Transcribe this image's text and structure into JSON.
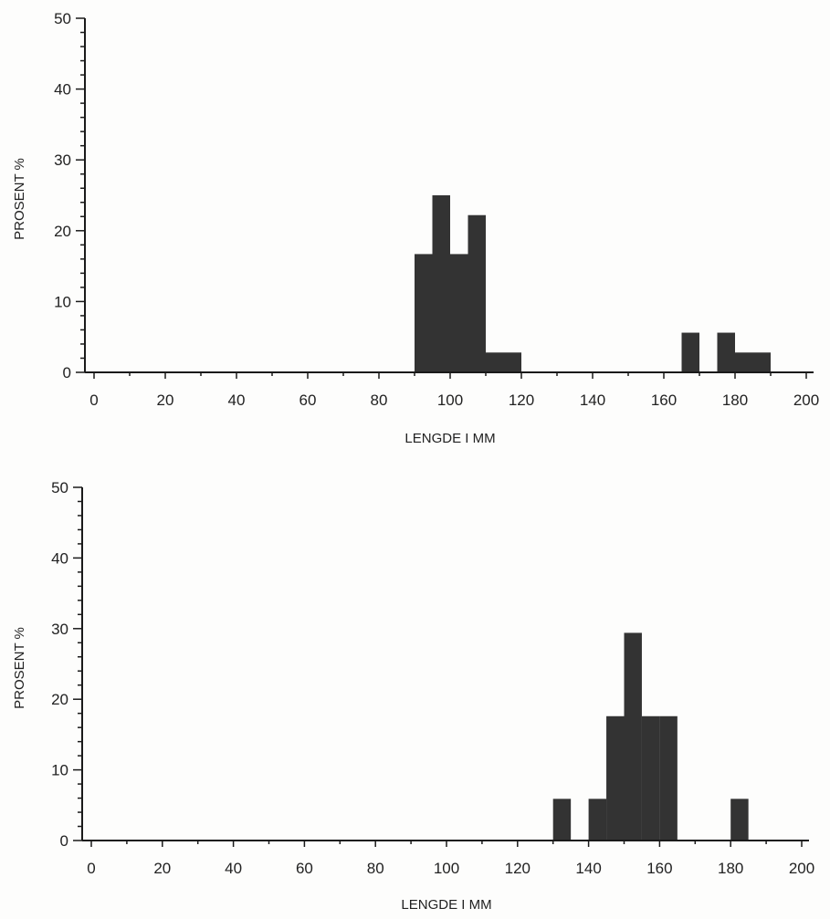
{
  "charts": [
    {
      "type": "bar",
      "xlabel": "LENGDE I MM",
      "ylabel": "PROSENT %",
      "xlim": [
        0,
        200
      ],
      "ylim": [
        0,
        50
      ],
      "x_ticks": [
        "0",
        "20",
        "40",
        "60",
        "80",
        "100",
        "120",
        "140",
        "160",
        "180",
        "200"
      ],
      "y_ticks": [
        "0",
        "10",
        "20",
        "30",
        "40",
        "50"
      ],
      "bar_color": "#333333",
      "bins": [
        {
          "start": 90,
          "end": 95,
          "value": 16.7
        },
        {
          "start": 95,
          "end": 100,
          "value": 25
        },
        {
          "start": 100,
          "end": 105,
          "value": 16.7
        },
        {
          "start": 105,
          "end": 110,
          "value": 22.2
        },
        {
          "start": 110,
          "end": 115,
          "value": 2.8
        },
        {
          "start": 115,
          "end": 120,
          "value": 2.8
        },
        {
          "start": 165,
          "end": 170,
          "value": 5.6
        },
        {
          "start": 175,
          "end": 180,
          "value": 5.6
        },
        {
          "start": 180,
          "end": 185,
          "value": 2.8
        },
        {
          "start": 185,
          "end": 190,
          "value": 2.8
        }
      ]
    },
    {
      "type": "bar",
      "xlabel": "LENGDE I MM",
      "ylabel": "PROSENT %",
      "xlim": [
        0,
        200
      ],
      "ylim": [
        0,
        50
      ],
      "x_ticks": [
        "0",
        "20",
        "40",
        "60",
        "80",
        "100",
        "120",
        "140",
        "160",
        "180",
        "200"
      ],
      "y_ticks": [
        "0",
        "10",
        "20",
        "30",
        "40",
        "50"
      ],
      "bar_color": "#333333",
      "bins": [
        {
          "start": 130,
          "end": 135,
          "value": 5.9
        },
        {
          "start": 140,
          "end": 145,
          "value": 5.9
        },
        {
          "start": 145,
          "end": 150,
          "value": 17.6
        },
        {
          "start": 150,
          "end": 155,
          "value": 29.4
        },
        {
          "start": 155,
          "end": 160,
          "value": 17.6
        },
        {
          "start": 160,
          "end": 165,
          "value": 17.6
        },
        {
          "start": 180,
          "end": 185,
          "value": 5.9
        }
      ]
    }
  ]
}
